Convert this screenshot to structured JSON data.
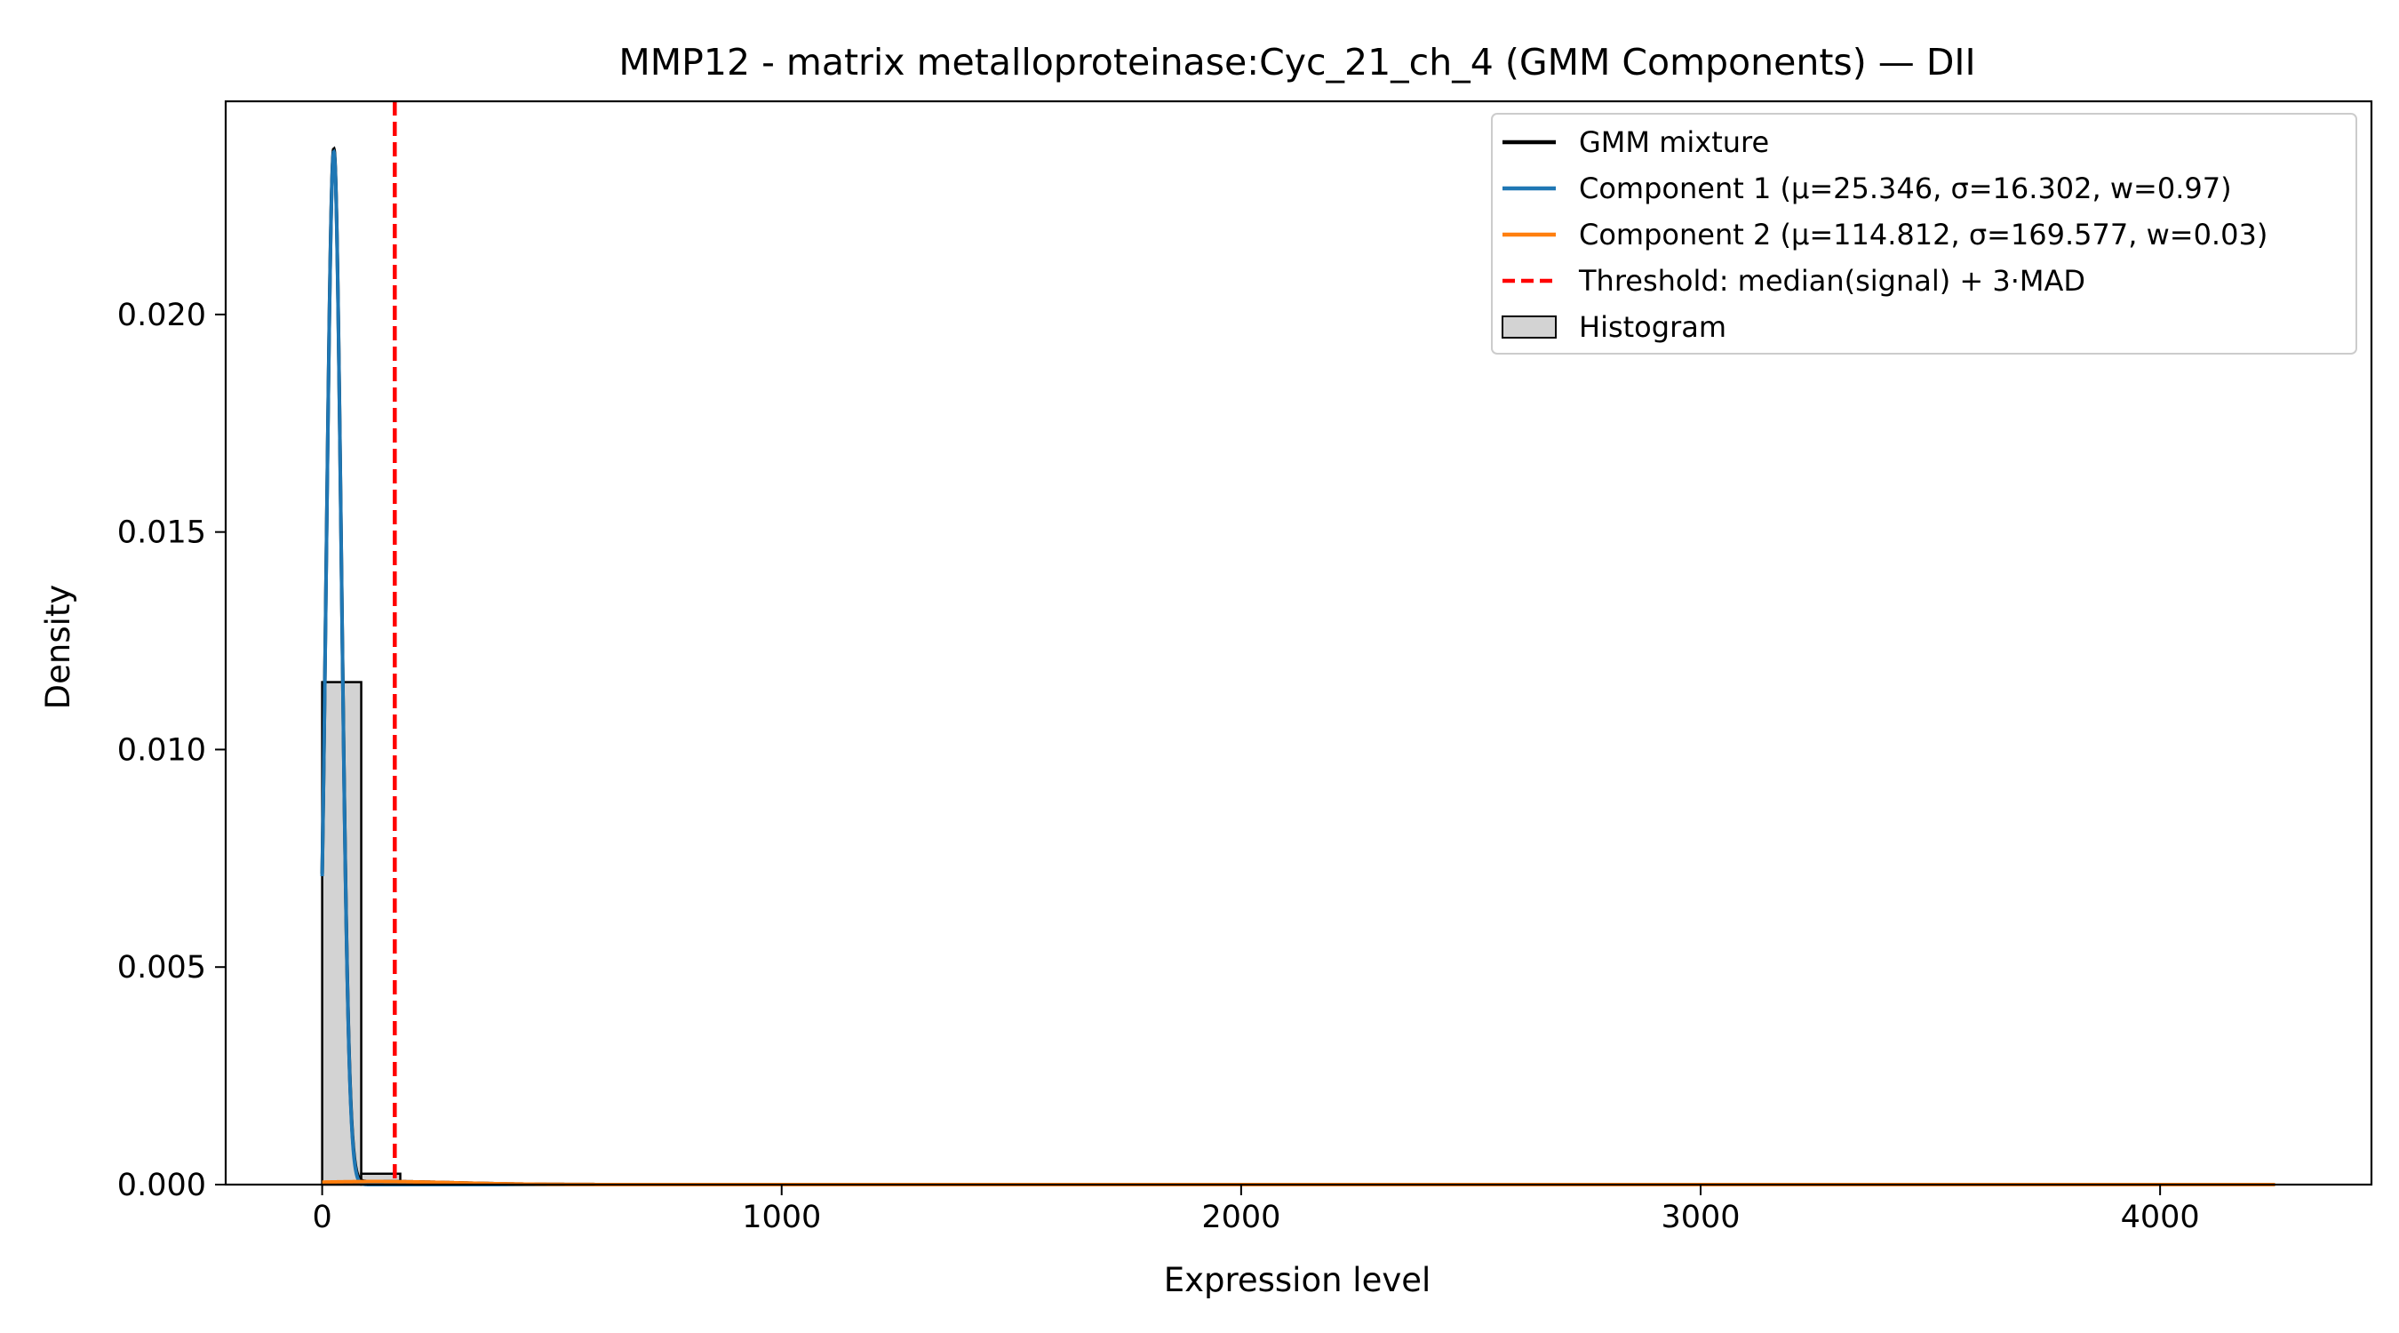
{
  "chart_data": {
    "type": "line",
    "title": "MMP12 - matrix metalloproteinase:Cyc_21_ch_4 (GMM Components) — DII",
    "xlabel": "Expression level",
    "ylabel": "Density",
    "xlim": [
      -210,
      4460
    ],
    "ylim": [
      0,
      0.0249
    ],
    "x_ticks": [
      0,
      1000,
      2000,
      3000,
      4000
    ],
    "x_tick_labels": [
      "0",
      "1000",
      "2000",
      "3000",
      "4000"
    ],
    "y_ticks": [
      0.0,
      0.005,
      0.01,
      0.015,
      0.02
    ],
    "y_tick_labels": [
      "0.000",
      "0.005",
      "0.010",
      "0.015",
      "0.020"
    ],
    "grid": false,
    "legend_position": "upper right",
    "histogram": {
      "bins": [
        [
          0,
          85,
          0.01155
        ],
        [
          85,
          170,
          0.00025
        ],
        [
          170,
          255,
          3e-05
        ]
      ],
      "fill": "#d3d3d3",
      "edge": "#000000"
    },
    "components": [
      {
        "mu": 25.346,
        "sigma": 16.302,
        "w": 0.97
      },
      {
        "mu": 114.812,
        "sigma": 169.577,
        "w": 0.03
      }
    ],
    "x_range": [
      0,
      4250
    ],
    "threshold": 158,
    "series": [
      {
        "name": "GMM mixture",
        "color": "#000000",
        "style": "solid"
      },
      {
        "name": "Component 1 (μ=25.346, σ=16.302, w=0.97)",
        "color": "#1f77b4",
        "style": "solid"
      },
      {
        "name": "Component 2 (μ=114.812, σ=169.577, w=0.03)",
        "color": "#ff7f0e",
        "style": "solid"
      },
      {
        "name": "Threshold: median(signal) + 3·MAD",
        "color": "#ff0000",
        "style": "dashed"
      },
      {
        "name": "Histogram",
        "color": "#d3d3d3",
        "style": "patch"
      }
    ]
  }
}
